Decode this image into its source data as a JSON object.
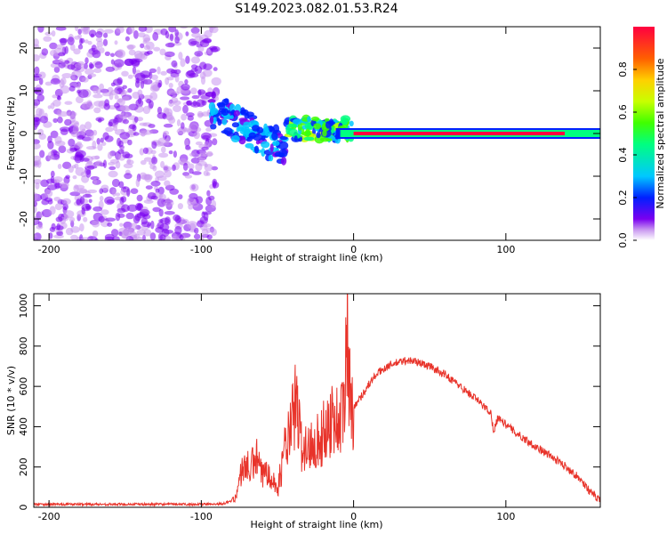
{
  "title": "S149.2023.082.01.53.R24",
  "chart_data": [
    {
      "type": "heatmap",
      "xlabel": "Height of straight line (km)",
      "ylabel": "Frequency (Hz)",
      "xlim": [
        -210,
        162
      ],
      "ylim": [
        -25,
        25
      ],
      "xticks": [
        -200,
        -100,
        0,
        100
      ],
      "yticks": [
        -20,
        -10,
        0,
        10,
        20
      ],
      "colorbar": {
        "label": "Normalized spectral amplitude",
        "range": [
          0,
          1
        ],
        "ticks": [
          "0.0",
          "0.2",
          "0.4",
          "0.6",
          "0.8"
        ],
        "colormap": [
          "#ffffff",
          "#c896f0",
          "#7a00f0",
          "#0020ff",
          "#00c8ff",
          "#00ff80",
          "#40ff00",
          "#c8ff00",
          "#ffd000",
          "#ff6000",
          "#ff0040"
        ]
      },
      "features": [
        {
          "x": [
            -210,
            -90
          ],
          "y": [
            -25,
            25
          ],
          "amplitude": [
            0.05,
            0.25
          ]
        },
        {
          "x": [
            -95,
            -45
          ],
          "y": [
            -10,
            9
          ],
          "amplitude": [
            0.2,
            0.45
          ]
        },
        {
          "x": [
            -45,
            0
          ],
          "y": [
            -2,
            6
          ],
          "amplitude": [
            0.3,
            0.7
          ]
        },
        {
          "x": [
            0,
            162
          ],
          "y": [
            -1,
            1
          ],
          "amplitude": [
            0.7,
            1.0
          ]
        }
      ]
    },
    {
      "type": "line",
      "xlabel": "Height of straight line (km)",
      "ylabel": "SNR (10 * v/v)",
      "xlim": [
        -210,
        162
      ],
      "ylim": [
        0,
        1060
      ],
      "xticks": [
        -200,
        -100,
        0,
        100
      ],
      "yticks": [
        0,
        200,
        400,
        600,
        800,
        1000
      ],
      "color": "#e8332a",
      "series": [
        {
          "x": [
            -210,
            -180,
            -150,
            -120,
            -100,
            -85,
            -78,
            -72,
            -68,
            -64,
            -60,
            -56,
            -50,
            -45,
            -42,
            -38,
            -34,
            -30,
            -26,
            -22,
            -18,
            -14,
            -10,
            -6,
            -4,
            -3,
            -2,
            0,
            5,
            10,
            15,
            20,
            25,
            30,
            35,
            40,
            50,
            60,
            70,
            80,
            90,
            92,
            95,
            100,
            110,
            120,
            130,
            140,
            150,
            155,
            162
          ],
          "y": [
            15,
            15,
            15,
            15,
            15,
            18,
            40,
            220,
            180,
            250,
            150,
            200,
            80,
            300,
            350,
            520,
            300,
            280,
            350,
            320,
            400,
            450,
            420,
            480,
            980,
            700,
            460,
            500,
            550,
            610,
            660,
            690,
            710,
            720,
            730,
            725,
            700,
            660,
            600,
            540,
            470,
            380,
            450,
            410,
            350,
            300,
            250,
            200,
            130,
            80,
            30
          ]
        }
      ]
    }
  ]
}
